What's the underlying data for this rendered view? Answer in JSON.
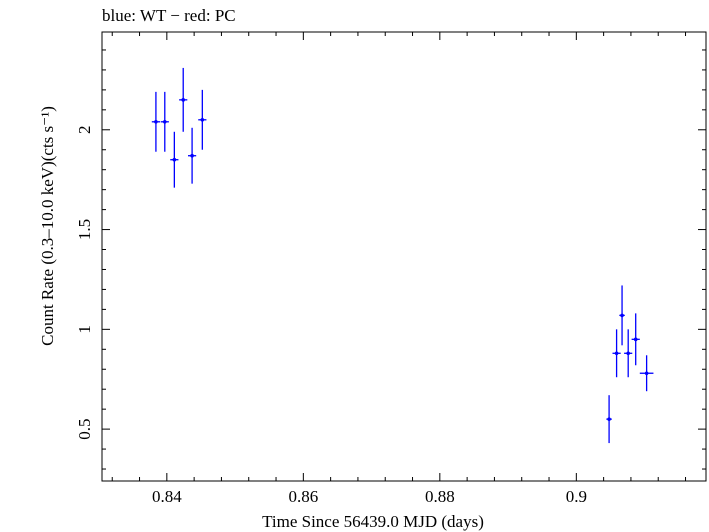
{
  "chart_data": {
    "type": "scatter",
    "title": "blue: WT − red: PC",
    "xlabel": "Time Since 56439.0 MJD (days)",
    "ylabel": "Count Rate (0.3–10.0 keV)(cts s⁻¹)",
    "xlim": [
      0.8305,
      0.919
    ],
    "ylim": [
      0.24,
      2.49
    ],
    "x_ticks": [
      0.84,
      0.86,
      0.88,
      0.9
    ],
    "x_tick_labels": [
      "0.84",
      "0.86",
      "0.88",
      "0.9"
    ],
    "y_ticks": [
      0.5,
      1,
      1.5,
      2
    ],
    "y_tick_labels": [
      "0.5",
      "1",
      "1.5",
      "2"
    ],
    "grid": false,
    "series": [
      {
        "name": "WT",
        "color": "#0000ff",
        "points": [
          {
            "x": 0.8384,
            "y": 2.04,
            "xerr": 0.0006,
            "yerr": 0.15
          },
          {
            "x": 0.8397,
            "y": 2.04,
            "xerr": 0.0006,
            "yerr": 0.15
          },
          {
            "x": 0.8411,
            "y": 1.85,
            "xerr": 0.0006,
            "yerr": 0.14
          },
          {
            "x": 0.8424,
            "y": 2.15,
            "xerr": 0.0006,
            "yerr": 0.16
          },
          {
            "x": 0.8437,
            "y": 1.87,
            "xerr": 0.0006,
            "yerr": 0.14
          },
          {
            "x": 0.8452,
            "y": 2.05,
            "xerr": 0.0006,
            "yerr": 0.15
          },
          {
            "x": 0.9048,
            "y": 0.55,
            "xerr": 0.0004,
            "yerr": 0.12
          },
          {
            "x": 0.9059,
            "y": 0.88,
            "xerr": 0.0006,
            "yerr": 0.12
          },
          {
            "x": 0.9067,
            "y": 1.07,
            "xerr": 0.0004,
            "yerr": 0.15
          },
          {
            "x": 0.9076,
            "y": 0.88,
            "xerr": 0.0006,
            "yerr": 0.12
          },
          {
            "x": 0.9087,
            "y": 0.95,
            "xerr": 0.0006,
            "yerr": 0.13
          },
          {
            "x": 0.9103,
            "y": 0.78,
            "xerr": 0.001,
            "yerr": 0.09
          }
        ]
      }
    ]
  }
}
